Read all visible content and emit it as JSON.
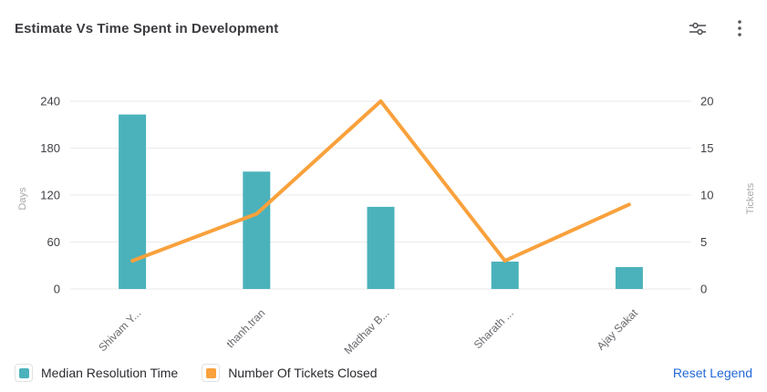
{
  "header": {
    "title": "Estimate Vs Time Spent in Development",
    "settings_icon": "sliders-icon",
    "menu_icon": "kebab-menu-icon"
  },
  "chart_data": {
    "type": "combo-bar-line",
    "categories": [
      "Shivam Y...",
      "thanh.tran",
      "Madhav B...",
      "Sharath ...",
      "Ajay Sakat"
    ],
    "series": [
      {
        "name": "Median Resolution Time",
        "type": "bar",
        "axis": "left",
        "color": "#4bb2bb",
        "values": [
          223,
          150,
          105,
          35,
          28
        ]
      },
      {
        "name": "Number Of Tickets Closed",
        "type": "line",
        "axis": "right",
        "color": "#f9a13c",
        "values": [
          3,
          8,
          20,
          3,
          9
        ]
      }
    ],
    "left_axis": {
      "label": "Days",
      "ticks": [
        0,
        60,
        120,
        180,
        240
      ],
      "range": [
        0,
        240
      ]
    },
    "right_axis": {
      "label": "Tickets",
      "ticks": [
        0,
        5,
        10,
        15,
        20
      ],
      "range": [
        0,
        20
      ]
    },
    "grid": true,
    "legend_position": "bottom"
  },
  "legend": {
    "reset_label": "Reset Legend"
  },
  "colors": {
    "bar": "#4bb2bb",
    "line": "#f9a13c",
    "gridline": "#ededed",
    "tick_text": "#3f3f46",
    "axis_title_text": "#a8a8ad",
    "x_label_text": "#68686d",
    "reset_link": "#2169d8"
  }
}
